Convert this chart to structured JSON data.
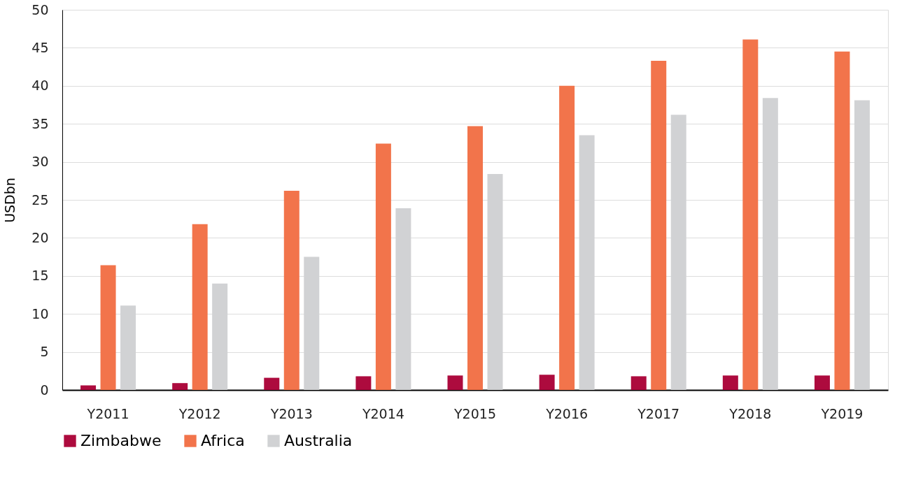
{
  "chart_data": {
    "type": "bar",
    "ylabel": "USDbn",
    "categories": [
      "Y2011",
      "Y2012",
      "Y2013",
      "Y2014",
      "Y2015",
      "Y2016",
      "Y2017",
      "Y2018",
      "Y2019"
    ],
    "series": [
      {
        "name": "Zimbabwe",
        "color": "#ad0b3e",
        "values": [
          0.6,
          0.9,
          1.6,
          1.8,
          1.9,
          2.0,
          1.8,
          1.9,
          1.9
        ]
      },
      {
        "name": "Africa",
        "color": "#f2744b",
        "values": [
          16.4,
          21.8,
          26.2,
          32.4,
          34.7,
          40.0,
          43.3,
          46.1,
          44.5
        ]
      },
      {
        "name": "Australia",
        "color": "#d1d2d4",
        "values": [
          11.1,
          14.0,
          17.5,
          23.9,
          28.4,
          33.5,
          36.2,
          38.4,
          38.1
        ]
      }
    ],
    "ylim": [
      0,
      50
    ],
    "yticks": [
      0,
      5,
      10,
      15,
      20,
      25,
      30,
      35,
      40,
      45,
      50
    ],
    "grid": "y",
    "legend": "bottom"
  }
}
